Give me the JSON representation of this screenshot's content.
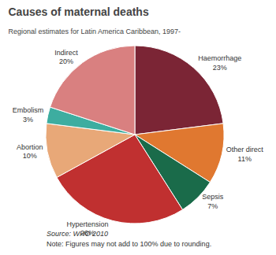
{
  "chart_data": {
    "type": "pie",
    "title": "Causes of maternal deaths",
    "subtitle": "Regional estimates for Latin America Caribbean, 1997-",
    "categories": [
      "Haemorrhage",
      "Other direct",
      "Sepsis",
      "Hypertension",
      "Abortion",
      "Embolism",
      "Indirect"
    ],
    "values": [
      23,
      11,
      7,
      26,
      10,
      3,
      20
    ],
    "value_labels": [
      "23%",
      "11%",
      "7%",
      "26%",
      "10%",
      "3%",
      "20%"
    ],
    "colors": [
      "#7B2535",
      "#E07830",
      "#1A6B4A",
      "#C03030",
      "#E8A878",
      "#3DADA0",
      "#D98080"
    ],
    "data_labels": true,
    "annotations": [
      "Source: WHO 2010",
      "Note: Figures may not add to 100% due to rounding."
    ]
  }
}
